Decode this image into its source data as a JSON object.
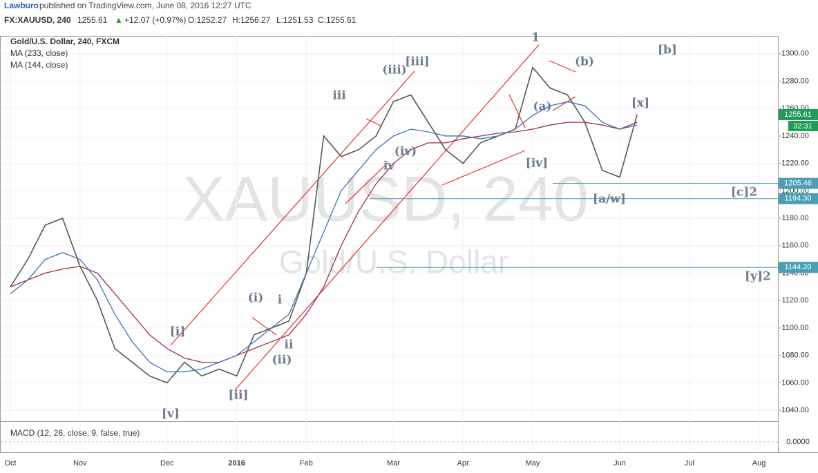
{
  "header": {
    "author": "Lawburo",
    "published": "published on TradingView.com, June 08, 2016 12:27 UTC",
    "symbol": "FX:XAUUSD, 240",
    "price": "1255.61",
    "change": "+12.07 (+0.97%)",
    "open": "O:1252.27",
    "high": "H:1256.27",
    "low": "L:1251.53",
    "close": "C:1255.61"
  },
  "chart_data": {
    "type": "line",
    "legend": [
      "Gold/U.S. Dollar, 240, FXCM",
      "MA (233, close)",
      "MA (144, close)"
    ],
    "watermark": [
      "XAUUSD, 240",
      "Gold/U.S. Dollar"
    ],
    "categories": [
      "Oct",
      null,
      null,
      null,
      "Nov",
      null,
      null,
      null,
      null,
      "Dec",
      null,
      null,
      null,
      "2016",
      null,
      null,
      null,
      "Feb",
      null,
      null,
      null,
      null,
      "Mar",
      null,
      null,
      null,
      "Apr",
      null,
      null,
      null,
      "May",
      null,
      null,
      null,
      null,
      "Jun",
      null,
      null,
      null,
      "Jul",
      null,
      null,
      null,
      "Aug",
      null
    ],
    "series": [
      {
        "name": "Gold/U.S. Dollar",
        "color": "#555555",
        "values": [
          1130,
          1150,
          1175,
          1180,
          1145,
          1120,
          1085,
          1075,
          1065,
          1060,
          1075,
          1065,
          1070,
          1065,
          1095,
          1100,
          1105,
          1140,
          1240,
          1225,
          1230,
          1240,
          1265,
          1270,
          1250,
          1230,
          1220,
          1235,
          1240,
          1245,
          1290,
          1275,
          1270,
          1250,
          1215,
          1210,
          1255.61,
          null,
          null,
          null,
          null,
          null,
          null,
          null,
          null
        ]
      },
      {
        "name": "MA (233, close)",
        "color": "#9b2c4d",
        "values": [
          1130,
          1135,
          1140,
          1143,
          1145,
          1140,
          1125,
          1110,
          1095,
          1085,
          1078,
          1075,
          1075,
          1080,
          1085,
          1090,
          1095,
          1110,
          1130,
          1160,
          1185,
          1205,
          1220,
          1230,
          1235,
          1235,
          1238,
          1240,
          1242,
          1243,
          1245,
          1248,
          1250,
          1250,
          1248,
          1245,
          1250,
          null,
          null,
          null,
          null,
          null,
          null,
          null,
          null
        ]
      },
      {
        "name": "MA (144, close)",
        "color": "#3d6fb0",
        "values": [
          1125,
          1135,
          1150,
          1155,
          1150,
          1135,
          1110,
          1090,
          1075,
          1068,
          1068,
          1070,
          1075,
          1080,
          1090,
          1100,
          1110,
          1140,
          1170,
          1200,
          1215,
          1230,
          1240,
          1245,
          1243,
          1240,
          1240,
          1238,
          1240,
          1245,
          1255,
          1262,
          1265,
          1262,
          1250,
          1245,
          1248,
          null,
          null,
          null,
          null,
          null,
          null,
          null,
          null
        ]
      }
    ],
    "ylim": [
      1032,
      1313
    ],
    "yticks": [
      {
        "value": 1040,
        "label": "1040.00"
      },
      {
        "value": 1060,
        "label": "1060.00"
      },
      {
        "value": 1080,
        "label": "1080.00"
      },
      {
        "value": 1100,
        "label": "1100.00"
      },
      {
        "value": 1120,
        "label": "1120.00"
      },
      {
        "value": 1140,
        "label": "1140.00"
      },
      {
        "value": 1160,
        "label": "1160.00"
      },
      {
        "value": 1180,
        "label": "1180.00"
      },
      {
        "value": 1200,
        "label": "1200.00"
      },
      {
        "value": 1220,
        "label": "1220.00"
      },
      {
        "value": 1240,
        "label": "1240.00"
      },
      {
        "value": 1260,
        "label": "1260.00"
      },
      {
        "value": 1280,
        "label": "1280.00"
      },
      {
        "value": 1300,
        "label": "1300.00"
      }
    ],
    "levels": [
      {
        "value": 1205.46,
        "label": "1205.46"
      },
      {
        "value": 1194.3,
        "label": "1194.30"
      },
      {
        "value": 1144.2,
        "label": "1144.20"
      }
    ],
    "last_price": {
      "value": 1255.61,
      "label": "1255.61"
    },
    "countdown": "32:31",
    "annotations": [
      "[b]",
      "[x]",
      "[c]2",
      "[y]2",
      "1",
      "(b)",
      "(a)",
      "[iv]",
      "[a/w]",
      "[iii]",
      "(iii)",
      "iii",
      "(iv)",
      "iv",
      "(i)",
      "i",
      "ii",
      "(ii)",
      "[i]",
      "[ii]",
      "[v]"
    ],
    "macd": {
      "title": "MACD (12, 26, close, 9, false, true)",
      "yticks": [
        {
          "value": 0,
          "label": "0.0000"
        }
      ]
    }
  }
}
